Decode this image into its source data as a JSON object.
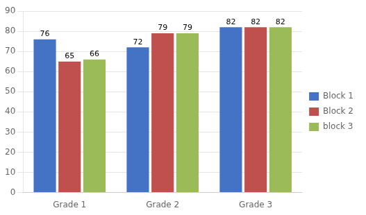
{
  "chart_data": {
    "type": "bar",
    "categories": [
      "Grade 1",
      "Grade 2",
      "Grade 3"
    ],
    "series": [
      {
        "name": "Block 1",
        "color": "#4472C4",
        "values": [
          76,
          72,
          82
        ]
      },
      {
        "name": "Block 2",
        "color": "#C0504D",
        "values": [
          65,
          79,
          82
        ]
      },
      {
        "name": "block 3",
        "color": "#9BBB59",
        "values": [
          66,
          79,
          82
        ]
      }
    ],
    "ylim": [
      0,
      90
    ],
    "yticks": [
      0,
      10,
      20,
      30,
      40,
      50,
      60,
      70,
      80,
      90
    ],
    "grid": true,
    "legend": "right",
    "data_labels": true
  }
}
